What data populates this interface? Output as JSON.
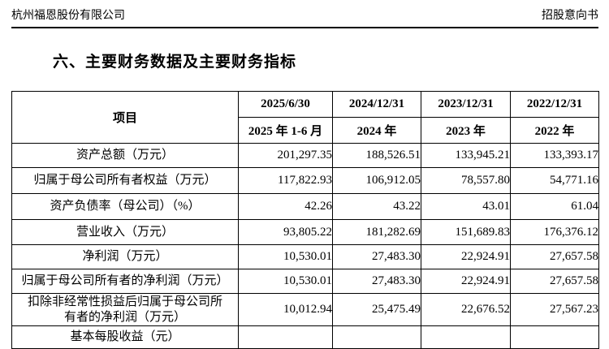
{
  "page": {
    "company_name": "杭州福恩股份有限公司",
    "doc_type": "招股意向书",
    "section_title": "六、主要财务数据及主要财务指标"
  },
  "colors": {
    "text": "#000000",
    "background": "#ffffff",
    "border": "#000000"
  },
  "table": {
    "item_header": "项目",
    "period_headers": [
      {
        "date": "2025/6/30",
        "period": "2025 年 1-6 月"
      },
      {
        "date": "2024/12/31",
        "period": "2024 年"
      },
      {
        "date": "2023/12/31",
        "period": "2023 年"
      },
      {
        "date": "2022/12/31",
        "period": "2022 年"
      }
    ],
    "rows": [
      {
        "label": "资产总额（万元）",
        "values": [
          "201,297.35",
          "188,526.51",
          "133,945.21",
          "133,393.17"
        ]
      },
      {
        "label": "归属于母公司所有者权益（万元）",
        "values": [
          "117,822.93",
          "106,912.05",
          "78,557.80",
          "54,771.16"
        ]
      },
      {
        "label": "资产负债率（母公司）（%）",
        "values": [
          "42.26",
          "43.22",
          "43.01",
          "61.04"
        ]
      },
      {
        "label": "营业收入（万元）",
        "values": [
          "93,805.22",
          "181,282.69",
          "151,689.83",
          "176,376.12"
        ]
      },
      {
        "label": "净利润（万元）",
        "values": [
          "10,530.01",
          "27,483.30",
          "22,924.91",
          "27,657.58"
        ]
      },
      {
        "label": "归属于母公司所有者的净利润（万元）",
        "values": [
          "10,530.01",
          "27,483.30",
          "22,924.91",
          "27,657.58"
        ]
      },
      {
        "label": "扣除非经常性损益后归属于母公司所\n有者的净利润（万元）",
        "values": [
          "10,012.94",
          "25,475.49",
          "22,676.52",
          "27,567.23"
        ]
      },
      {
        "label": "基本每股收益（元）",
        "values": [
          "",
          "",
          "",
          ""
        ],
        "partial": true
      }
    ]
  }
}
